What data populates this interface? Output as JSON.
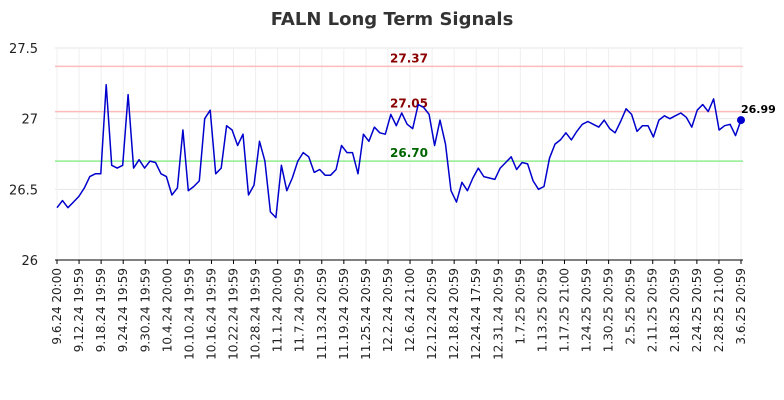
{
  "chart_data": {
    "type": "line",
    "title": "FALN Long Term Signals",
    "xlabel": "",
    "ylabel": "",
    "ylim": [
      26,
      27.5
    ],
    "yticks": [
      26,
      26.5,
      27,
      27.5
    ],
    "ytick_labels": [
      "26",
      "26.5",
      "27",
      "27.5"
    ],
    "xtick_labels": [
      "9.6.24 20:00",
      "9.12.24 19:59",
      "9.18.24 19:59",
      "9.24.24 19:59",
      "9.30.24 19:59",
      "10.4.24 20:00",
      "10.10.24 19:59",
      "10.16.24 19:59",
      "10.22.24 19:59",
      "10.28.24 19:59",
      "11.1.24 20:00",
      "11.7.24 20:59",
      "11.13.24 20:59",
      "11.19.24 20:59",
      "11.25.24 20:59",
      "12.2.24 20:59",
      "12.6.24 21:00",
      "12.12.24 20:59",
      "12.18.24 20:59",
      "12.24.24 17:59",
      "12.31.24 20:59",
      "1.7.25 20:59",
      "1.13.25 20:59",
      "1.17.25 21:00",
      "1.24.25 20:59",
      "1.30.25 20:59",
      "2.5.25 20:59",
      "2.11.25 20:59",
      "2.18.25 20:59",
      "2.24.25 20:59",
      "2.28.25 21:00",
      "3.6.25 20:59"
    ],
    "grid": true,
    "series": [
      {
        "color": "#0000cc",
        "values": [
          26.37,
          26.42,
          26.37,
          26.41,
          26.45,
          26.51,
          26.59,
          26.61,
          26.61,
          27.24,
          26.67,
          26.65,
          26.67,
          27.17,
          26.65,
          26.71,
          26.65,
          26.7,
          26.69,
          26.61,
          26.59,
          26.46,
          26.51,
          26.92,
          26.49,
          26.52,
          26.56,
          27.0,
          27.06,
          26.61,
          26.65,
          26.95,
          26.92,
          26.81,
          26.89,
          26.46,
          26.53,
          26.84,
          26.7,
          26.34,
          26.3,
          26.67,
          26.49,
          26.58,
          26.7,
          26.76,
          26.73,
          26.62,
          26.64,
          26.6,
          26.6,
          26.64,
          26.81,
          26.76,
          26.76,
          26.61,
          26.89,
          26.84,
          26.94,
          26.9,
          26.89,
          27.03,
          26.95,
          27.04,
          26.96,
          26.93,
          27.1,
          27.08,
          27.03,
          26.81,
          26.99,
          26.82,
          26.49,
          26.41,
          26.55,
          26.49,
          26.58,
          26.65,
          26.59,
          26.58,
          26.57,
          26.65,
          26.69,
          26.73,
          26.64,
          26.69,
          26.68,
          26.56,
          26.5,
          26.52,
          26.72,
          26.82,
          26.85,
          26.9,
          26.85,
          26.91,
          26.96,
          26.98,
          26.96,
          26.94,
          26.99,
          26.93,
          26.9,
          26.98,
          27.07,
          27.03,
          26.91,
          26.95,
          26.95,
          26.87,
          26.99,
          27.02,
          27.0,
          27.02,
          27.04,
          27.01,
          26.94,
          27.06,
          27.1,
          27.05,
          27.14,
          26.92,
          26.95,
          26.96,
          26.88,
          26.99
        ]
      }
    ],
    "last_value_label": "26.99",
    "hlines": [
      {
        "value": 27.37,
        "label": "27.37",
        "line_color": "#ffbbbb",
        "text_color": "#8b0000"
      },
      {
        "value": 27.05,
        "label": "27.05",
        "line_color": "#ffbbbb",
        "text_color": "#8b0000"
      },
      {
        "value": 26.7,
        "label": "26.70",
        "line_color": "#90ee90",
        "text_color": "#006400"
      }
    ]
  }
}
